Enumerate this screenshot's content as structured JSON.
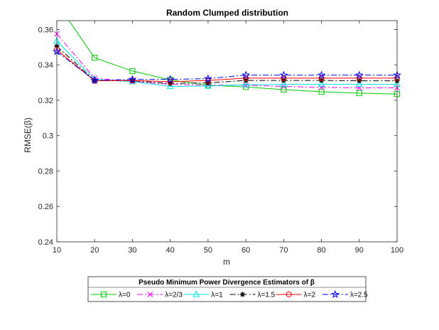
{
  "chart_data": {
    "type": "line",
    "title": "Random Clumped distribution",
    "xlabel": "m",
    "ylabel": "RMSE(β)",
    "x": [
      10,
      20,
      30,
      40,
      50,
      60,
      70,
      80,
      90,
      100
    ],
    "xticks": [
      "10",
      "20",
      "30",
      "40",
      "50",
      "60",
      "70",
      "80",
      "90",
      "100"
    ],
    "yticks": [
      "0.24",
      "0.26",
      "0.28",
      "0.3",
      "0.32",
      "0.34",
      "0.36"
    ],
    "xlim": [
      10,
      100
    ],
    "ylim": [
      0.24,
      0.365
    ],
    "grid": false,
    "legend": {
      "title": "Pseudo Minimum Power Divergence Estimators of β",
      "placement": "bottom",
      "orientation": "horizontal"
    },
    "series": [
      {
        "name": "λ=0",
        "color": "#00cc00",
        "marker": "square",
        "dash": "solid",
        "values": [
          0.375,
          0.344,
          0.3365,
          0.3315,
          0.3285,
          0.3275,
          0.326,
          0.3248,
          0.324,
          0.3235
        ]
      },
      {
        "name": "λ=2/3",
        "color": "#ff00ff",
        "marker": "x",
        "dash": "dashdot",
        "values": [
          0.3575,
          0.3325,
          0.3305,
          0.329,
          0.3285,
          0.3285,
          0.3278,
          0.3273,
          0.327,
          0.327
        ]
      },
      {
        "name": "λ=1",
        "color": "#00e5e5",
        "marker": "triangle",
        "dash": "solid",
        "values": [
          0.3535,
          0.3318,
          0.3305,
          0.3278,
          0.328,
          0.3288,
          0.329,
          0.329,
          0.329,
          0.329
        ]
      },
      {
        "name": "λ=1.5",
        "color": "#000000",
        "marker": "asterisk",
        "dash": "dashdot",
        "values": [
          0.3505,
          0.3312,
          0.331,
          0.3295,
          0.3298,
          0.3312,
          0.3312,
          0.3312,
          0.331,
          0.331
        ]
      },
      {
        "name": "λ=2",
        "color": "#ff0000",
        "marker": "circle",
        "dash": "solid",
        "values": [
          0.3485,
          0.331,
          0.3312,
          0.3305,
          0.3312,
          0.3325,
          0.3325,
          0.3325,
          0.3325,
          0.3325
        ]
      },
      {
        "name": "λ=2.5",
        "color": "#0000ff",
        "marker": "star",
        "dash": "dashdot",
        "values": [
          0.3475,
          0.3312,
          0.3318,
          0.3318,
          0.3322,
          0.3342,
          0.3342,
          0.3342,
          0.3342,
          0.3342
        ]
      }
    ]
  }
}
